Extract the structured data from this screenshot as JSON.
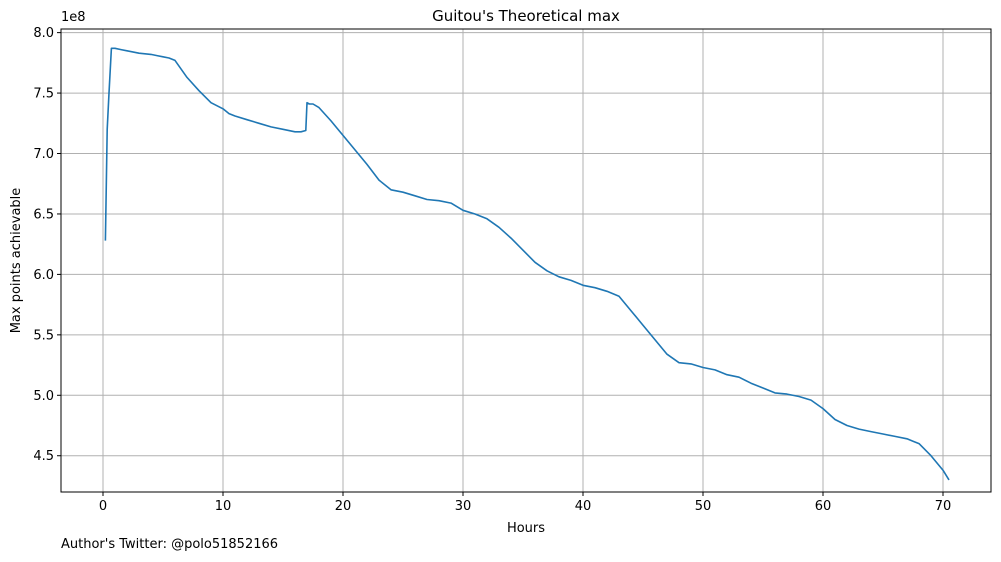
{
  "chart_data": {
    "type": "line",
    "title": "Guitou's Theoretical max",
    "xlabel": "Hours",
    "ylabel": "Max points achievable",
    "y_offset_label": "1e8",
    "xlim": [
      -3.5,
      74
    ],
    "ylim": [
      4.2,
      8.03
    ],
    "xticks": [
      0,
      10,
      20,
      30,
      40,
      50,
      60,
      70
    ],
    "yticks": [
      4.5,
      5.0,
      5.5,
      6.0,
      6.5,
      7.0,
      7.5,
      8.0
    ],
    "xtick_labels": [
      "0",
      "10",
      "20",
      "30",
      "40",
      "50",
      "60",
      "70"
    ],
    "ytick_labels": [
      "4.5",
      "5.0",
      "5.5",
      "6.0",
      "6.5",
      "7.0",
      "7.5",
      "8.0"
    ],
    "grid": true,
    "line_color": "#1f77b4",
    "series": [
      {
        "x": [
          0.2,
          0.35,
          0.5,
          0.7,
          1.0,
          1.5,
          2.0,
          3.0,
          4.0,
          4.5,
          5.0,
          5.5,
          6.0,
          7.0,
          8.0,
          9.0,
          10.0,
          10.5,
          11.0,
          12.0,
          13.0,
          14.0,
          15.0,
          16.0,
          16.5,
          16.9,
          17.0,
          17.2,
          17.5,
          18.0,
          19.0,
          20.0,
          21.0,
          22.0,
          23.0,
          24.0,
          25.0,
          26.0,
          27.0,
          28.0,
          29.0,
          30.0,
          31.0,
          32.0,
          33.0,
          34.0,
          35.0,
          36.0,
          37.0,
          38.0,
          39.0,
          40.0,
          41.0,
          42.0,
          43.0,
          44.0,
          45.0,
          46.0,
          47.0,
          48.0,
          49.0,
          50.0,
          51.0,
          52.0,
          53.0,
          54.0,
          55.0,
          56.0,
          57.0,
          58.0,
          59.0,
          60.0,
          61.0,
          62.0,
          63.0,
          64.0,
          65.0,
          66.0,
          67.0,
          67.5,
          68.0,
          69.0,
          70.0,
          70.5
        ],
        "y": [
          6.28,
          7.2,
          7.5,
          7.87,
          7.87,
          7.86,
          7.85,
          7.83,
          7.82,
          7.81,
          7.8,
          7.79,
          7.77,
          7.63,
          7.52,
          7.42,
          7.37,
          7.33,
          7.31,
          7.28,
          7.25,
          7.22,
          7.2,
          7.18,
          7.18,
          7.19,
          7.42,
          7.41,
          7.41,
          7.38,
          7.27,
          7.15,
          7.03,
          6.91,
          6.78,
          6.7,
          6.68,
          6.65,
          6.62,
          6.61,
          6.59,
          6.53,
          6.5,
          6.46,
          6.39,
          6.3,
          6.2,
          6.1,
          6.03,
          5.98,
          5.95,
          5.91,
          5.89,
          5.86,
          5.82,
          5.7,
          5.58,
          5.46,
          5.34,
          5.27,
          5.26,
          5.23,
          5.21,
          5.17,
          5.15,
          5.1,
          5.06,
          5.02,
          5.01,
          4.99,
          4.96,
          4.89,
          4.8,
          4.75,
          4.72,
          4.7,
          4.68,
          4.66,
          4.64,
          4.62,
          4.6,
          4.5,
          4.38,
          4.3
        ]
      }
    ]
  },
  "footer": {
    "author_note": "Author's Twitter: @polo51852166"
  }
}
